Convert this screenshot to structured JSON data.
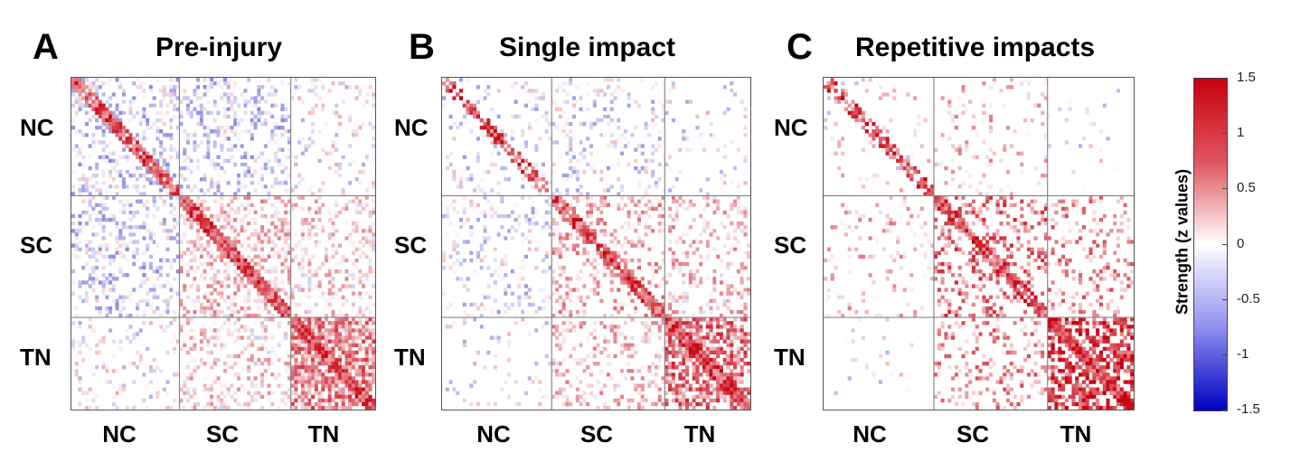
{
  "chart_data": [
    {
      "type": "heatmap",
      "panel": "A",
      "title": "Pre-injury",
      "row_groups": [
        "NC",
        "SC",
        "TN"
      ],
      "col_groups": [
        "NC",
        "SC",
        "TN"
      ],
      "block_mean_strength": [
        [
          -0.2,
          -0.2,
          0.0
        ],
        [
          -0.2,
          0.3,
          0.2
        ],
        [
          0.0,
          0.2,
          0.7
        ]
      ],
      "density": [
        [
          0.35,
          0.35,
          0.15
        ],
        [
          0.35,
          0.45,
          0.35
        ],
        [
          0.15,
          0.35,
          0.75
        ]
      ],
      "color_range": [
        -1.5,
        1.5
      ]
    },
    {
      "type": "heatmap",
      "panel": "B",
      "title": "Single impact",
      "row_groups": [
        "NC",
        "SC",
        "TN"
      ],
      "col_groups": [
        "NC",
        "SC",
        "TN"
      ],
      "block_mean_strength": [
        [
          -0.1,
          -0.1,
          0.0
        ],
        [
          -0.1,
          0.4,
          0.3
        ],
        [
          0.1,
          0.3,
          0.8
        ]
      ],
      "density": [
        [
          0.15,
          0.2,
          0.08
        ],
        [
          0.2,
          0.3,
          0.3
        ],
        [
          0.1,
          0.3,
          0.6
        ]
      ],
      "color_range": [
        -1.5,
        1.5
      ]
    },
    {
      "type": "heatmap",
      "panel": "C",
      "title": "Repetitive impacts",
      "row_groups": [
        "NC",
        "SC",
        "TN"
      ],
      "col_groups": [
        "NC",
        "SC",
        "TN"
      ],
      "block_mean_strength": [
        [
          0.1,
          0.3,
          0.0
        ],
        [
          0.1,
          0.8,
          0.6
        ],
        [
          0.0,
          0.5,
          1.1
        ]
      ],
      "density": [
        [
          0.1,
          0.12,
          0.03
        ],
        [
          0.1,
          0.3,
          0.2
        ],
        [
          0.03,
          0.2,
          0.55
        ]
      ],
      "color_range": [
        -1.5,
        1.5
      ]
    }
  ],
  "colorbar": {
    "label": "Strength (z values)",
    "ticks": [
      "1.5",
      "1",
      "0.5",
      "0",
      "-0.5",
      "-1",
      "-1.5"
    ],
    "tick_values": [
      1.5,
      1,
      0.5,
      0,
      -0.5,
      -1,
      -1.5
    ],
    "colors": {
      "max": "#c8000f",
      "mid": "#ffffff",
      "min": "#0000c0"
    }
  },
  "panels": [
    {
      "letter": "A",
      "title": "Pre-injury",
      "rows": [
        "NC",
        "SC",
        "TN"
      ],
      "cols": [
        "NC",
        "SC",
        "TN"
      ]
    },
    {
      "letter": "B",
      "title": "Single impact",
      "rows": [
        "NC",
        "SC",
        "TN"
      ],
      "cols": [
        "NC",
        "SC",
        "TN"
      ]
    },
    {
      "letter": "C",
      "title": "Repetitive impacts",
      "rows": [
        "NC",
        "SC",
        "TN"
      ],
      "cols": [
        "NC",
        "SC",
        "TN"
      ]
    }
  ]
}
